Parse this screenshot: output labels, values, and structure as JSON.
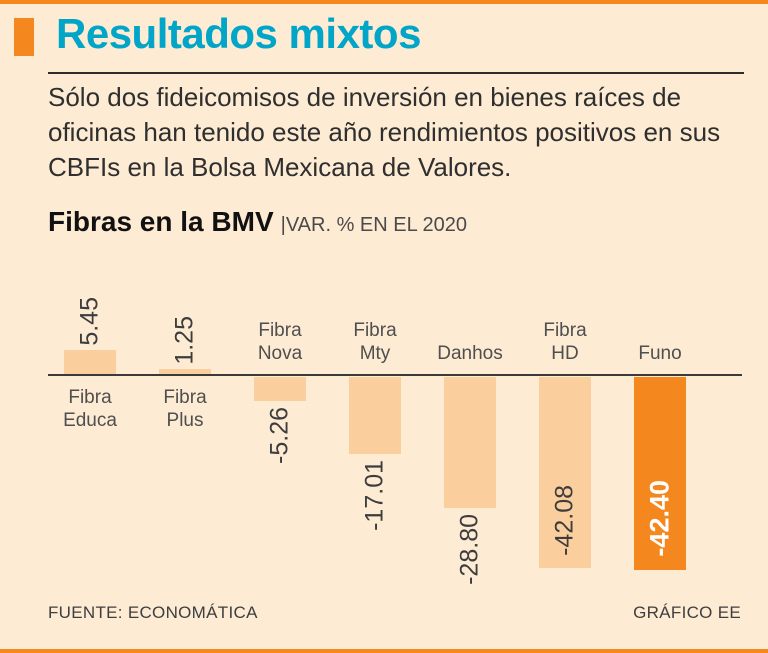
{
  "page": {
    "bg": "#fdebd4",
    "accent_orange": "#f5871f",
    "title_color": "#00a5c8"
  },
  "header": {
    "title": "Resultados mixtos"
  },
  "intro": "Sólo dos fideicomisos de inversión en bienes raíces de oficinas han tenido este año rendimientos positivos en sus CBFIs en la Bolsa Mexicana de Valores.",
  "chart_heading": {
    "title": "Fibras en la BMV",
    "subtitle": "|VAR. % EN EL 2020"
  },
  "footer": {
    "source": "FUENTE: ECONOMÁTICA",
    "credit": "GRÁFICO EE"
  },
  "chart_data": {
    "type": "bar",
    "title": "Fibras en la BMV",
    "subtitle": "VAR. % EN EL 2020",
    "unit": "percent",
    "baseline": 0,
    "ylim": [
      -45,
      10
    ],
    "grid": false,
    "legend": "none",
    "categories": [
      "Fibra Educa",
      "Fibra Plus",
      "Fibra Nova",
      "Fibra Mty",
      "Danhos",
      "Fibra HD",
      "Funo"
    ],
    "values": [
      5.45,
      1.25,
      -5.26,
      -17.01,
      -28.8,
      -42.08,
      -42.4
    ],
    "colors": {
      "bar_light": "#fbcf9d",
      "bar_highlight": "#f5871f",
      "value_dark": "#3d3d3d",
      "value_white": "#ffffff"
    },
    "bars": [
      {
        "label_lines": [
          "Fibra",
          "Educa"
        ],
        "value": 5.45,
        "display": "5.45",
        "style": "light",
        "value_pos": "above",
        "value_color": "dark"
      },
      {
        "label_lines": [
          "Fibra",
          "Plus"
        ],
        "value": 1.25,
        "display": "1.25",
        "style": "light",
        "value_pos": "above",
        "value_color": "dark"
      },
      {
        "label_lines": [
          "Fibra",
          "Nova"
        ],
        "value": -5.26,
        "display": "-5.26",
        "style": "light",
        "value_pos": "below",
        "value_color": "dark"
      },
      {
        "label_lines": [
          "Fibra",
          "Mty"
        ],
        "value": -17.01,
        "display": "-17.01",
        "style": "light",
        "value_pos": "below",
        "value_color": "dark"
      },
      {
        "label_lines": [
          "Danhos"
        ],
        "value": -28.8,
        "display": "-28.80",
        "style": "light",
        "value_pos": "below",
        "value_color": "dark"
      },
      {
        "label_lines": [
          "Fibra",
          "HD"
        ],
        "value": -42.08,
        "display": "-42.08",
        "style": "light",
        "value_pos": "inside",
        "value_color": "dark"
      },
      {
        "label_lines": [
          "Funo"
        ],
        "value": -42.4,
        "display": "-42.40",
        "style": "highlight",
        "value_pos": "inside",
        "value_color": "white"
      }
    ]
  }
}
